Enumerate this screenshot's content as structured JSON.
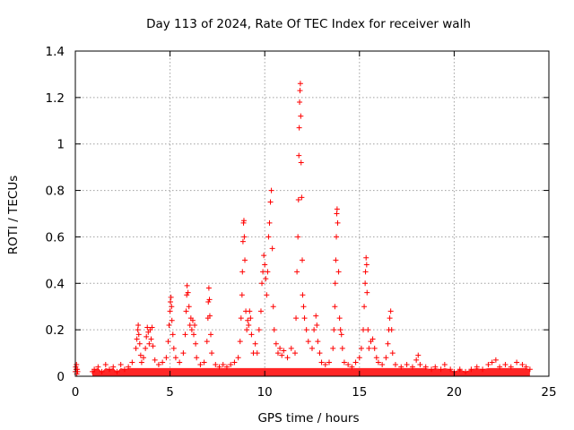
{
  "chart_data": {
    "type": "scatter",
    "title": "Day 113 of 2024, Rate Of TEC Index for receiver walh",
    "xlabel": "GPS time / hours",
    "ylabel": "ROTI / TECUs",
    "xlim": [
      0,
      25
    ],
    "ylim": [
      0,
      1.4
    ],
    "xticks": [
      0,
      5,
      10,
      15,
      20,
      25
    ],
    "xtick_labels": [
      "0",
      "5",
      "10",
      "15",
      "20",
      "25"
    ],
    "yticks": [
      0,
      0.2,
      0.4,
      0.6,
      0.8,
      1,
      1.2,
      1.4
    ],
    "ytick_labels": [
      "0",
      "0.2",
      "0.4",
      "0.6",
      "0.8",
      "1",
      "1.2",
      "1.4"
    ],
    "grid": true,
    "marker": "+",
    "color": "#ff0000",
    "series": [
      {
        "name": "ROTI",
        "points": [
          [
            0.0,
            0.02
          ],
          [
            0.02,
            0.04
          ],
          [
            0.04,
            0.03
          ],
          [
            0.06,
            0.05
          ],
          [
            0.08,
            0.01
          ],
          [
            0.1,
            0.03
          ],
          [
            0.12,
            0.02
          ],
          [
            0.9,
            0.02
          ],
          [
            1.0,
            0.03
          ],
          [
            1.2,
            0.04
          ],
          [
            1.4,
            0.02
          ],
          [
            1.6,
            0.05
          ],
          [
            1.8,
            0.03
          ],
          [
            2.0,
            0.04
          ],
          [
            2.2,
            0.02
          ],
          [
            2.4,
            0.05
          ],
          [
            2.6,
            0.03
          ],
          [
            2.8,
            0.04
          ],
          [
            3.0,
            0.06
          ],
          [
            3.2,
            0.12
          ],
          [
            3.25,
            0.16
          ],
          [
            3.3,
            0.2
          ],
          [
            3.32,
            0.22
          ],
          [
            3.35,
            0.18
          ],
          [
            3.4,
            0.14
          ],
          [
            3.45,
            0.09
          ],
          [
            3.5,
            0.06
          ],
          [
            3.6,
            0.08
          ],
          [
            3.7,
            0.12
          ],
          [
            3.75,
            0.17
          ],
          [
            3.8,
            0.21
          ],
          [
            3.85,
            0.19
          ],
          [
            3.9,
            0.14
          ],
          [
            3.95,
            0.2
          ],
          [
            4.0,
            0.16
          ],
          [
            4.05,
            0.21
          ],
          [
            4.1,
            0.13
          ],
          [
            4.2,
            0.07
          ],
          [
            4.4,
            0.05
          ],
          [
            4.6,
            0.06
          ],
          [
            4.8,
            0.08
          ],
          [
            4.9,
            0.15
          ],
          [
            4.95,
            0.22
          ],
          [
            5.0,
            0.28
          ],
          [
            5.02,
            0.32
          ],
          [
            5.05,
            0.34
          ],
          [
            5.08,
            0.3
          ],
          [
            5.1,
            0.24
          ],
          [
            5.15,
            0.18
          ],
          [
            5.2,
            0.12
          ],
          [
            5.3,
            0.08
          ],
          [
            5.5,
            0.06
          ],
          [
            5.7,
            0.1
          ],
          [
            5.8,
            0.18
          ],
          [
            5.85,
            0.28
          ],
          [
            5.88,
            0.35
          ],
          [
            5.9,
            0.39
          ],
          [
            5.95,
            0.36
          ],
          [
            6.0,
            0.3
          ],
          [
            6.05,
            0.22
          ],
          [
            6.1,
            0.25
          ],
          [
            6.15,
            0.2
          ],
          [
            6.2,
            0.24
          ],
          [
            6.25,
            0.18
          ],
          [
            6.3,
            0.22
          ],
          [
            6.35,
            0.14
          ],
          [
            6.4,
            0.08
          ],
          [
            6.6,
            0.05
          ],
          [
            6.8,
            0.06
          ],
          [
            6.95,
            0.15
          ],
          [
            7.0,
            0.25
          ],
          [
            7.02,
            0.32
          ],
          [
            7.05,
            0.38
          ],
          [
            7.08,
            0.33
          ],
          [
            7.1,
            0.26
          ],
          [
            7.15,
            0.18
          ],
          [
            7.2,
            0.1
          ],
          [
            7.4,
            0.05
          ],
          [
            7.6,
            0.04
          ],
          [
            7.8,
            0.05
          ],
          [
            8.0,
            0.04
          ],
          [
            8.2,
            0.05
          ],
          [
            8.4,
            0.06
          ],
          [
            8.6,
            0.08
          ],
          [
            8.7,
            0.15
          ],
          [
            8.75,
            0.25
          ],
          [
            8.8,
            0.35
          ],
          [
            8.82,
            0.45
          ],
          [
            8.85,
            0.58
          ],
          [
            8.88,
            0.66
          ],
          [
            8.9,
            0.67
          ],
          [
            8.92,
            0.6
          ],
          [
            8.95,
            0.5
          ],
          [
            9.0,
            0.28
          ],
          [
            9.05,
            0.2
          ],
          [
            9.1,
            0.24
          ],
          [
            9.15,
            0.22
          ],
          [
            9.2,
            0.28
          ],
          [
            9.25,
            0.25
          ],
          [
            9.3,
            0.18
          ],
          [
            9.4,
            0.1
          ],
          [
            9.5,
            0.14
          ],
          [
            9.6,
            0.1
          ],
          [
            9.7,
            0.2
          ],
          [
            9.8,
            0.28
          ],
          [
            9.85,
            0.4
          ],
          [
            9.9,
            0.45
          ],
          [
            9.95,
            0.52
          ],
          [
            10.0,
            0.48
          ],
          [
            10.05,
            0.42
          ],
          [
            10.1,
            0.35
          ],
          [
            10.15,
            0.45
          ],
          [
            10.2,
            0.6
          ],
          [
            10.25,
            0.66
          ],
          [
            10.3,
            0.75
          ],
          [
            10.35,
            0.8
          ],
          [
            10.4,
            0.55
          ],
          [
            10.45,
            0.3
          ],
          [
            10.5,
            0.2
          ],
          [
            10.6,
            0.14
          ],
          [
            10.7,
            0.1
          ],
          [
            10.8,
            0.12
          ],
          [
            10.9,
            0.09
          ],
          [
            11.0,
            0.11
          ],
          [
            11.2,
            0.08
          ],
          [
            11.4,
            0.12
          ],
          [
            11.6,
            0.1
          ],
          [
            11.65,
            0.25
          ],
          [
            11.7,
            0.45
          ],
          [
            11.75,
            0.6
          ],
          [
            11.78,
            0.76
          ],
          [
            11.8,
            0.95
          ],
          [
            11.82,
            1.07
          ],
          [
            11.84,
            1.18
          ],
          [
            11.86,
            1.23
          ],
          [
            11.88,
            1.26
          ],
          [
            11.9,
            1.12
          ],
          [
            11.92,
            0.92
          ],
          [
            11.95,
            0.77
          ],
          [
            11.98,
            0.5
          ],
          [
            12.0,
            0.35
          ],
          [
            12.05,
            0.3
          ],
          [
            12.1,
            0.25
          ],
          [
            12.2,
            0.2
          ],
          [
            12.3,
            0.15
          ],
          [
            12.5,
            0.12
          ],
          [
            12.6,
            0.2
          ],
          [
            12.7,
            0.26
          ],
          [
            12.75,
            0.22
          ],
          [
            12.8,
            0.15
          ],
          [
            12.9,
            0.1
          ],
          [
            13.0,
            0.06
          ],
          [
            13.2,
            0.05
          ],
          [
            13.4,
            0.06
          ],
          [
            13.6,
            0.12
          ],
          [
            13.65,
            0.2
          ],
          [
            13.7,
            0.3
          ],
          [
            13.72,
            0.4
          ],
          [
            13.75,
            0.5
          ],
          [
            13.78,
            0.6
          ],
          [
            13.8,
            0.7
          ],
          [
            13.82,
            0.72
          ],
          [
            13.85,
            0.66
          ],
          [
            13.9,
            0.45
          ],
          [
            13.95,
            0.25
          ],
          [
            14.0,
            0.2
          ],
          [
            14.05,
            0.18
          ],
          [
            14.1,
            0.12
          ],
          [
            14.2,
            0.06
          ],
          [
            14.4,
            0.05
          ],
          [
            14.6,
            0.04
          ],
          [
            14.8,
            0.06
          ],
          [
            15.0,
            0.08
          ],
          [
            15.1,
            0.12
          ],
          [
            15.2,
            0.2
          ],
          [
            15.25,
            0.3
          ],
          [
            15.3,
            0.4
          ],
          [
            15.32,
            0.45
          ],
          [
            15.35,
            0.51
          ],
          [
            15.38,
            0.48
          ],
          [
            15.4,
            0.36
          ],
          [
            15.45,
            0.2
          ],
          [
            15.5,
            0.12
          ],
          [
            15.6,
            0.15
          ],
          [
            15.7,
            0.16
          ],
          [
            15.8,
            0.12
          ],
          [
            15.9,
            0.08
          ],
          [
            16.0,
            0.06
          ],
          [
            16.2,
            0.05
          ],
          [
            16.4,
            0.08
          ],
          [
            16.5,
            0.14
          ],
          [
            16.55,
            0.2
          ],
          [
            16.6,
            0.25
          ],
          [
            16.65,
            0.28
          ],
          [
            16.7,
            0.2
          ],
          [
            16.75,
            0.1
          ],
          [
            16.9,
            0.05
          ],
          [
            17.2,
            0.04
          ],
          [
            17.5,
            0.05
          ],
          [
            17.8,
            0.04
          ],
          [
            18.0,
            0.07
          ],
          [
            18.1,
            0.09
          ],
          [
            18.2,
            0.05
          ],
          [
            18.5,
            0.04
          ],
          [
            18.8,
            0.03
          ],
          [
            19.0,
            0.04
          ],
          [
            19.3,
            0.03
          ],
          [
            19.5,
            0.05
          ],
          [
            19.8,
            0.03
          ],
          [
            20.0,
            0.02
          ],
          [
            20.3,
            0.03
          ],
          [
            20.6,
            0.02
          ],
          [
            20.9,
            0.03
          ],
          [
            21.2,
            0.04
          ],
          [
            21.5,
            0.03
          ],
          [
            21.8,
            0.05
          ],
          [
            22.0,
            0.06
          ],
          [
            22.2,
            0.07
          ],
          [
            22.4,
            0.04
          ],
          [
            22.7,
            0.05
          ],
          [
            23.0,
            0.04
          ],
          [
            23.3,
            0.06
          ],
          [
            23.6,
            0.05
          ],
          [
            23.8,
            0.04
          ],
          [
            24.0,
            0.03
          ]
        ]
      }
    ]
  }
}
